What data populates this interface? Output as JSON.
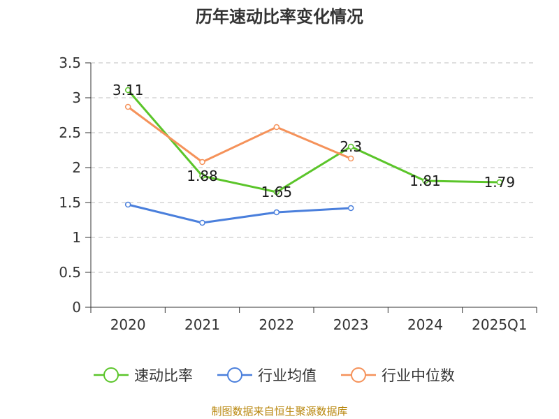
{
  "chart_data": {
    "type": "line",
    "title": "历年速动比率变化情况",
    "categories": [
      "2020",
      "2021",
      "2022",
      "2023",
      "2024",
      "2025Q1"
    ],
    "series": [
      {
        "name": "速动比率",
        "color": "#5bc52a",
        "values": [
          3.11,
          1.88,
          1.65,
          2.3,
          1.81,
          1.79
        ],
        "labels": [
          "3.11",
          "1.88",
          "1.65",
          "2.3",
          "1.81",
          "1.79"
        ]
      },
      {
        "name": "行业均值",
        "color": "#4a7fdc",
        "values": [
          1.47,
          1.21,
          1.36,
          1.42,
          null,
          null
        ]
      },
      {
        "name": "行业中位数",
        "color": "#f5925a",
        "values": [
          2.87,
          2.08,
          2.58,
          2.13,
          null,
          null
        ]
      }
    ],
    "yticks": [
      "0",
      "0.5",
      "1",
      "1.5",
      "2",
      "2.5",
      "3",
      "3.5"
    ],
    "ylim": [
      0,
      3.5
    ],
    "grid": true,
    "legend": "bottom",
    "xlabel": "",
    "ylabel": ""
  },
  "source": "制图数据来自恒生聚源数据库"
}
